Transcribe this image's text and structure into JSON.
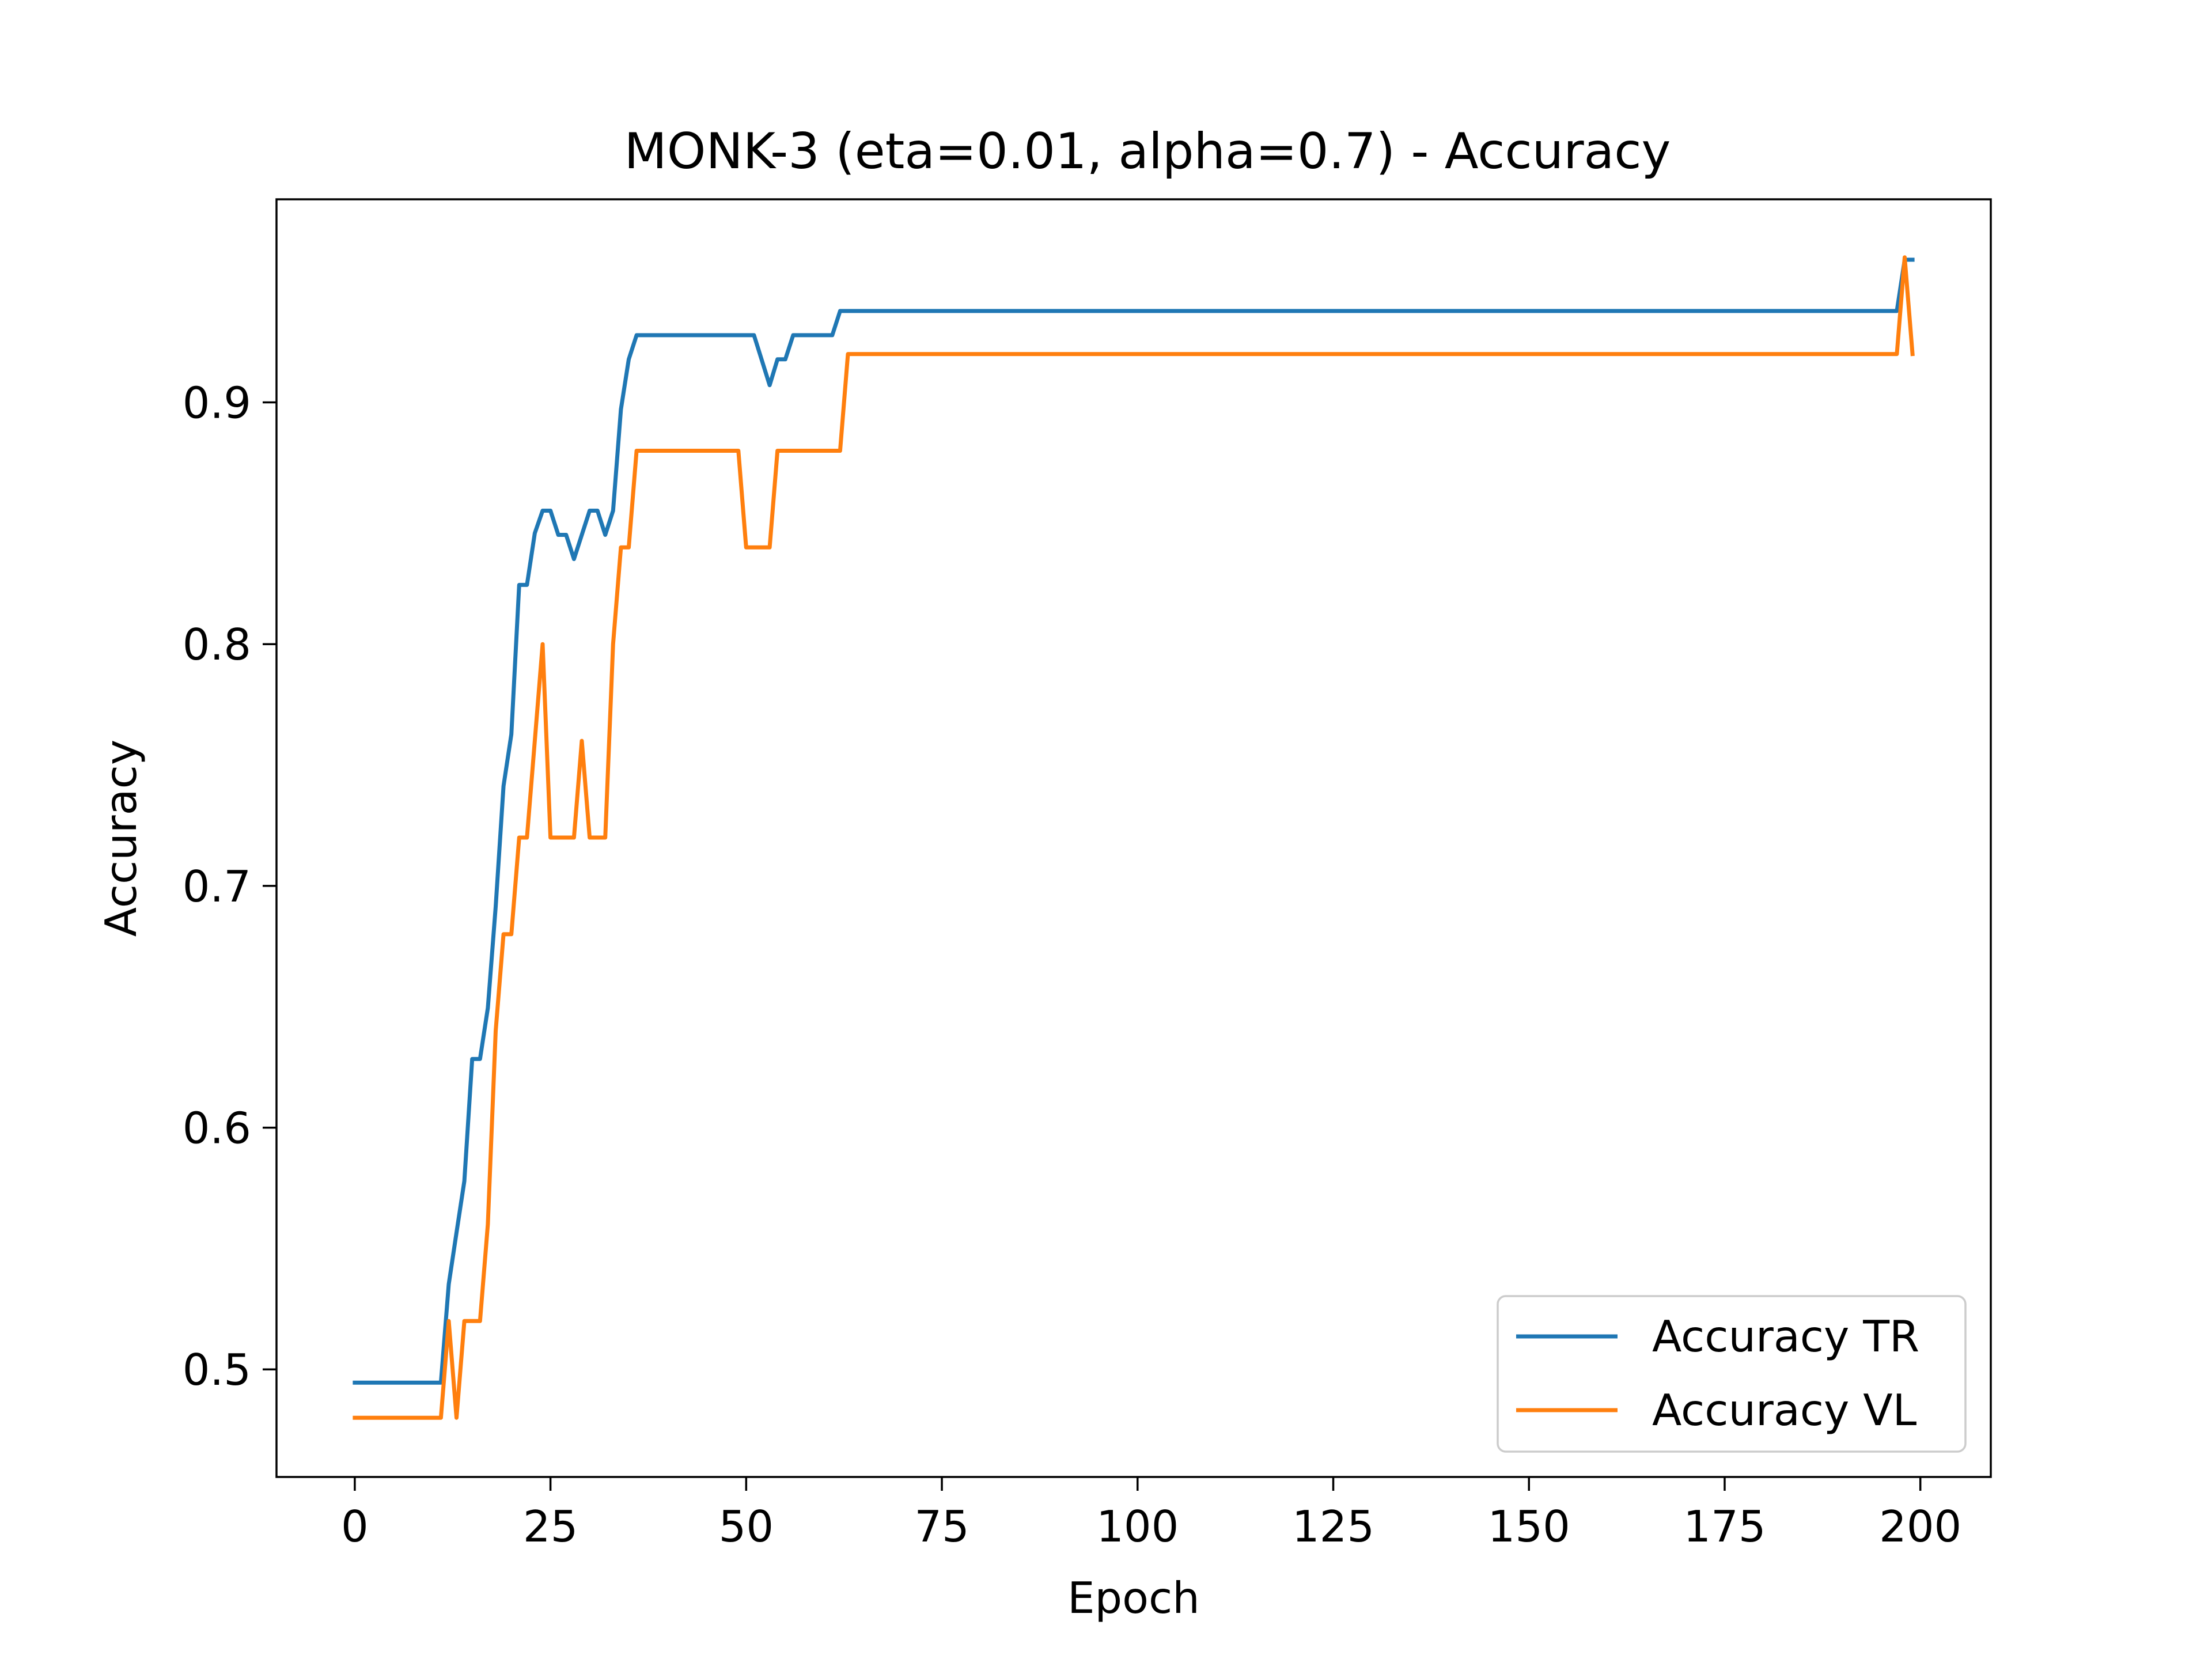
{
  "chart_data": {
    "type": "line",
    "title": "MONK-3 (eta=0.01, alpha=0.7) - Accuracy",
    "xlabel": "Epoch",
    "ylabel": "Accuracy",
    "xlim": [
      -10,
      209
    ],
    "ylim": [
      0.4555,
      0.984
    ],
    "x_ticks": [
      0,
      25,
      50,
      75,
      100,
      125,
      150,
      175,
      200
    ],
    "x_tick_labels": [
      "0",
      "25",
      "50",
      "75",
      "100",
      "125",
      "150",
      "175",
      "200"
    ],
    "y_ticks": [
      0.5,
      0.6,
      0.7,
      0.8,
      0.9
    ],
    "y_tick_labels": [
      "0.5",
      "0.6",
      "0.7",
      "0.8",
      "0.9"
    ],
    "grid": false,
    "legend_position": "lower-right",
    "series": [
      {
        "name": "Accuracy TR",
        "color": "#1f77b4",
        "points": [
          [
            0,
            0.4945
          ],
          [
            11,
            0.4945
          ],
          [
            12,
            0.5352
          ],
          [
            13,
            0.5566
          ],
          [
            14,
            0.5779
          ],
          [
            15,
            0.6284
          ],
          [
            16,
            0.6284
          ],
          [
            17,
            0.6495
          ],
          [
            18,
            0.6914
          ],
          [
            19,
            0.7413
          ],
          [
            20,
            0.7627
          ],
          [
            21,
            0.8245
          ],
          [
            22,
            0.8245
          ],
          [
            23,
            0.8459
          ],
          [
            24,
            0.8552
          ],
          [
            25,
            0.8552
          ],
          [
            26,
            0.8452
          ],
          [
            27,
            0.8452
          ],
          [
            28,
            0.8352
          ],
          [
            29,
            0.8452
          ],
          [
            30,
            0.8552
          ],
          [
            31,
            0.8552
          ],
          [
            32,
            0.8452
          ],
          [
            33,
            0.8552
          ],
          [
            34,
            0.8971
          ],
          [
            35,
            0.9178
          ],
          [
            36,
            0.9278
          ],
          [
            51,
            0.9278
          ],
          [
            53,
            0.9071
          ],
          [
            54,
            0.9178
          ],
          [
            55,
            0.9178
          ],
          [
            56,
            0.9278
          ],
          [
            61,
            0.9278
          ],
          [
            62,
            0.9378
          ],
          [
            197,
            0.9378
          ],
          [
            198,
            0.959
          ],
          [
            199,
            0.959
          ]
        ]
      },
      {
        "name": "Accuracy VL",
        "color": "#ff7f0e",
        "points": [
          [
            0,
            0.48
          ],
          [
            11,
            0.48
          ],
          [
            12,
            0.52
          ],
          [
            13,
            0.48
          ],
          [
            14,
            0.52
          ],
          [
            16,
            0.52
          ],
          [
            17,
            0.56
          ],
          [
            18,
            0.64
          ],
          [
            19,
            0.68
          ],
          [
            20,
            0.68
          ],
          [
            21,
            0.72
          ],
          [
            22,
            0.72
          ],
          [
            23,
            0.76
          ],
          [
            24,
            0.8
          ],
          [
            25,
            0.72
          ],
          [
            28,
            0.72
          ],
          [
            29,
            0.76
          ],
          [
            30,
            0.72
          ],
          [
            32,
            0.72
          ],
          [
            33,
            0.8
          ],
          [
            34,
            0.84
          ],
          [
            35,
            0.84
          ],
          [
            36,
            0.88
          ],
          [
            49,
            0.88
          ],
          [
            50,
            0.84
          ],
          [
            53,
            0.84
          ],
          [
            54,
            0.88
          ],
          [
            62,
            0.88
          ],
          [
            63,
            0.92
          ],
          [
            197,
            0.92
          ],
          [
            198,
            0.96
          ],
          [
            199,
            0.92
          ]
        ]
      }
    ]
  }
}
